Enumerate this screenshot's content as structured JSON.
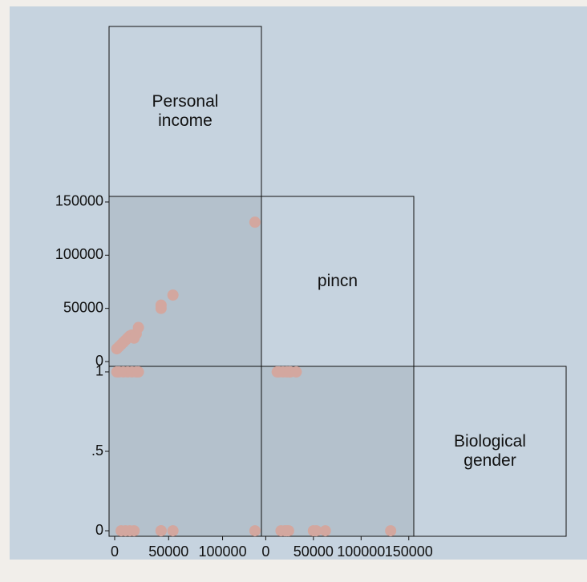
{
  "chart_data": {
    "type": "scatter-matrix",
    "color": "#d3a79f",
    "variables": [
      {
        "label": "Personal income",
        "lim": [
          -5200,
          136000
        ],
        "ticks": [
          0,
          50000,
          100000
        ],
        "values": [
          2000,
          4000,
          6000,
          8000,
          10000,
          12000,
          14000,
          16000,
          18000,
          20000,
          22000,
          43000,
          43000,
          54000,
          130000
        ]
      },
      {
        "label": "pincn",
        "lim": [
          -4520,
          155250
        ],
        "ticks": [
          0,
          50000,
          100000,
          150000
        ],
        "values": [
          12000,
          14000,
          16000,
          18000,
          20000,
          22000,
          24000,
          25000,
          22000,
          26000,
          32000,
          50000,
          53000,
          62500,
          131000
        ]
      },
      {
        "label": "Biological gender",
        "lim": [
          -0.035,
          1.035
        ],
        "ticks": [
          0,
          {
            "value": 0.5,
            "label": ".5"
          },
          1
        ],
        "values": [
          1,
          1,
          0,
          1,
          0,
          1,
          0,
          1,
          0,
          1,
          1,
          0,
          0,
          0,
          0
        ]
      }
    ]
  }
}
